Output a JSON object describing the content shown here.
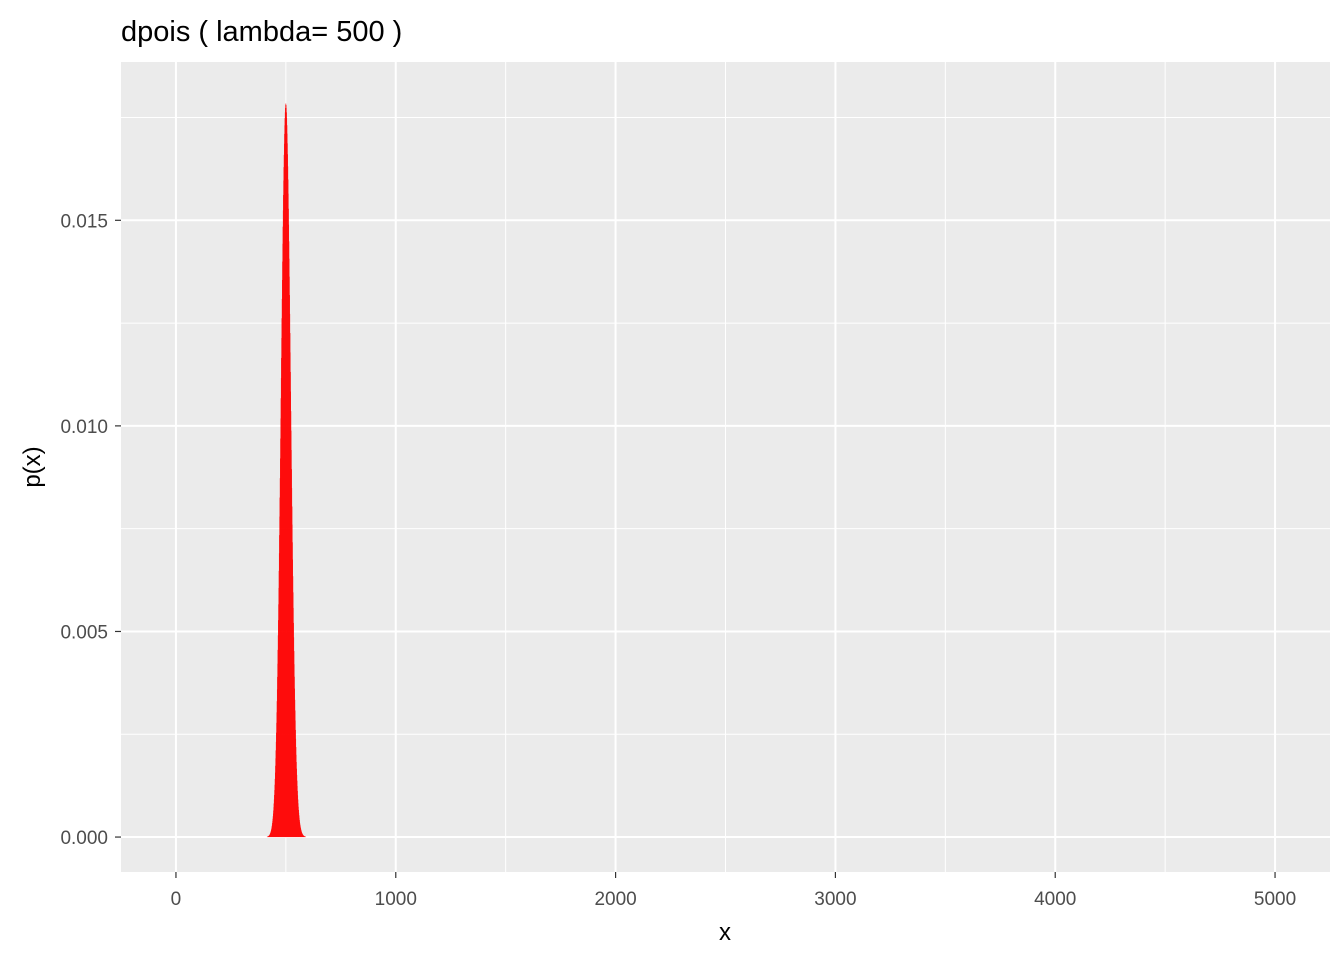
{
  "chart_data": {
    "type": "bar",
    "title": "dpois ( lambda= 500 )",
    "xlabel": "x",
    "ylabel": "p(x)",
    "distribution": "poisson",
    "lambda": 500,
    "xlim": [
      -250,
      5250
    ],
    "ylim": [
      -0.00085,
      0.01885
    ],
    "x_ticks": [
      0,
      1000,
      2000,
      3000,
      4000,
      5000
    ],
    "x_tick_labels": [
      "0",
      "1000",
      "2000",
      "3000",
      "4000",
      "5000"
    ],
    "y_ticks": [
      0.0,
      0.005,
      0.01,
      0.015
    ],
    "y_tick_labels": [
      "0.000",
      "0.005",
      "0.010",
      "0.015"
    ],
    "x": [
      0,
      1000,
      2000,
      3000,
      4000,
      5000
    ],
    "values": [
      0,
      0,
      0,
      0,
      0,
      0
    ],
    "peak": {
      "x": 500,
      "y": 0.0178
    },
    "grid": true,
    "bar_color": "#ff0000",
    "panel_color": "#ebebeb",
    "grid_color": "#ffffff"
  }
}
